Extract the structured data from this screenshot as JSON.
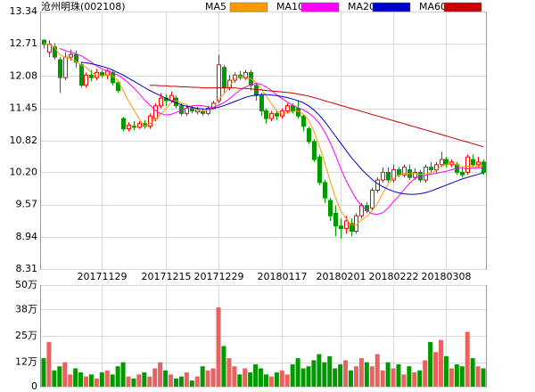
{
  "chart_data": [
    {
      "type": "candlestick",
      "title": "沧州明珠(002108)",
      "categories": [
        null,
        null,
        null,
        null,
        null,
        null,
        null,
        null,
        null,
        null,
        null,
        "20171129",
        null,
        null,
        null,
        null,
        null,
        null,
        null,
        null,
        null,
        null,
        null,
        "20171215",
        null,
        null,
        null,
        null,
        null,
        null,
        null,
        null,
        null,
        "20171229",
        null,
        null,
        null,
        null,
        null,
        null,
        null,
        null,
        null,
        null,
        null,
        "20180117",
        null,
        null,
        null,
        null,
        null,
        null,
        null,
        null,
        null,
        null,
        "20180201",
        null,
        null,
        null,
        null,
        null,
        null,
        null,
        null,
        null,
        "20180222",
        null,
        null,
        null,
        null,
        null,
        null,
        null,
        null,
        null,
        "20180308",
        null,
        null,
        null,
        null,
        null,
        null,
        null
      ],
      "open": [
        12.78,
        12.55,
        12.65,
        12.4,
        12.05,
        12.45,
        12.5,
        12.3,
        11.9,
        12.1,
        12.05,
        12.15,
        12.1,
        12.15,
        11.95,
        11.25,
        11.05,
        11.1,
        11.08,
        11.15,
        11.1,
        11.25,
        11.5,
        11.65,
        11.6,
        11.65,
        11.5,
        11.35,
        11.45,
        11.38,
        11.4,
        11.35,
        11.45,
        11.6,
        12.25,
        11.85,
        12.0,
        12.1,
        12.05,
        12.15,
        11.9,
        11.7,
        11.4,
        11.25,
        11.35,
        11.3,
        11.4,
        11.5,
        11.45,
        11.3,
        11.05,
        10.8,
        10.5,
        10.0,
        9.65,
        9.4,
        9.15,
        9.1,
        9.2,
        9.05,
        9.35,
        9.55,
        9.5,
        9.85,
        10.05,
        10.2,
        10.05,
        10.25,
        10.15,
        10.25,
        10.1,
        10.2,
        10.05,
        10.3,
        10.25,
        10.35,
        10.45,
        10.35,
        10.35,
        10.2,
        10.2,
        10.45,
        10.35,
        10.4
      ],
      "high": [
        12.8,
        12.78,
        12.72,
        12.45,
        12.55,
        12.6,
        12.58,
        12.35,
        12.15,
        12.2,
        12.22,
        12.2,
        12.22,
        12.18,
        12.0,
        11.28,
        11.18,
        11.2,
        11.2,
        11.22,
        11.35,
        11.55,
        11.75,
        11.72,
        11.78,
        11.7,
        11.55,
        11.52,
        11.5,
        11.48,
        11.45,
        11.5,
        11.6,
        12.5,
        12.3,
        12.1,
        12.15,
        12.18,
        12.2,
        12.2,
        11.95,
        11.75,
        11.45,
        11.4,
        11.42,
        11.45,
        11.55,
        11.55,
        11.6,
        11.32,
        11.1,
        10.85,
        10.55,
        10.05,
        9.7,
        9.55,
        9.3,
        9.35,
        9.3,
        9.4,
        9.6,
        9.62,
        9.9,
        10.1,
        10.3,
        10.3,
        10.35,
        10.3,
        10.35,
        10.35,
        10.28,
        10.25,
        10.35,
        10.4,
        10.4,
        10.6,
        10.5,
        10.45,
        10.4,
        10.3,
        10.55,
        10.55,
        10.5,
        10.45
      ],
      "low": [
        12.62,
        12.45,
        12.4,
        11.75,
        12.0,
        12.38,
        12.25,
        11.85,
        11.85,
        11.98,
        12.0,
        12.05,
        12.02,
        11.9,
        11.75,
        11.0,
        11.0,
        11.02,
        11.05,
        11.05,
        11.05,
        11.2,
        11.45,
        11.5,
        11.55,
        11.45,
        11.3,
        11.3,
        11.35,
        11.33,
        11.3,
        11.32,
        11.42,
        11.55,
        11.75,
        11.8,
        11.95,
        12.0,
        12.0,
        11.8,
        11.6,
        11.3,
        11.15,
        11.2,
        11.22,
        11.25,
        11.35,
        11.35,
        11.25,
        11.0,
        10.75,
        10.4,
        9.95,
        9.6,
        9.25,
        8.95,
        8.9,
        9.0,
        8.95,
        9.0,
        9.3,
        9.4,
        9.45,
        9.8,
        10.0,
        10.0,
        10.0,
        10.1,
        10.1,
        10.05,
        10.05,
        10.0,
        10.0,
        10.2,
        10.2,
        10.3,
        10.3,
        10.3,
        10.15,
        10.1,
        10.15,
        10.3,
        10.3,
        10.15
      ],
      "close": [
        12.7,
        12.7,
        12.45,
        12.05,
        12.45,
        12.5,
        12.35,
        11.9,
        12.1,
        12.05,
        12.15,
        12.1,
        12.18,
        11.95,
        11.8,
        11.05,
        11.12,
        11.08,
        11.15,
        11.1,
        11.3,
        11.5,
        11.65,
        11.6,
        11.7,
        11.5,
        11.35,
        11.45,
        11.4,
        11.42,
        11.35,
        11.45,
        11.55,
        12.3,
        11.85,
        12.0,
        12.1,
        12.05,
        12.15,
        11.9,
        11.7,
        11.4,
        11.25,
        11.35,
        11.3,
        11.4,
        11.5,
        11.4,
        11.3,
        11.1,
        10.8,
        10.45,
        10.0,
        9.7,
        9.35,
        9.15,
        9.1,
        9.25,
        9.05,
        9.35,
        9.55,
        9.45,
        9.85,
        10.05,
        10.2,
        10.05,
        10.25,
        10.15,
        10.3,
        10.1,
        10.2,
        10.05,
        10.3,
        10.25,
        10.35,
        10.45,
        10.35,
        10.4,
        10.2,
        10.15,
        10.5,
        10.35,
        10.4,
        10.2
      ],
      "series": [
        {
          "name": "MA5",
          "color": "#ff9900",
          "values": [
            12.72,
            12.7,
            12.65,
            12.5,
            12.45,
            12.42,
            12.38,
            12.3,
            12.25,
            12.15,
            12.1,
            12.08,
            12.1,
            12.08,
            12.0,
            11.8,
            11.6,
            11.42,
            11.25,
            11.1,
            11.15,
            11.22,
            11.33,
            11.43,
            11.55,
            11.6,
            11.56,
            11.52,
            11.47,
            11.42,
            11.4,
            11.41,
            11.43,
            11.62,
            11.73,
            11.85,
            12.03,
            12.08,
            12.03,
            12.04,
            11.96,
            11.84,
            11.69,
            11.54,
            11.4,
            11.34,
            11.36,
            11.39,
            11.4,
            11.34,
            11.22,
            11.01,
            10.73,
            10.41,
            10.06,
            9.73,
            9.46,
            9.31,
            9.18,
            9.17,
            9.27,
            9.33,
            9.45,
            9.59,
            9.79,
            9.96,
            10.08,
            10.14,
            10.19,
            10.17,
            10.18,
            10.16,
            10.17,
            10.18,
            10.23,
            10.32,
            10.36,
            10.38,
            10.35,
            10.31,
            10.32,
            10.32,
            10.32,
            10.33
          ]
        },
        {
          "name": "MA10",
          "color": "#ff00ff",
          "values": [
            null,
            null,
            null,
            12.62,
            12.58,
            12.55,
            12.52,
            12.48,
            12.42,
            12.35,
            12.28,
            12.22,
            12.18,
            12.14,
            12.1,
            12.03,
            11.95,
            11.85,
            11.74,
            11.62,
            11.52,
            11.42,
            11.35,
            11.32,
            11.33,
            11.37,
            11.41,
            11.46,
            11.5,
            11.51,
            11.5,
            11.48,
            11.47,
            11.51,
            11.56,
            11.63,
            11.72,
            11.8,
            11.86,
            11.91,
            11.94,
            11.92,
            11.87,
            11.8,
            11.71,
            11.64,
            11.57,
            11.51,
            11.46,
            11.42,
            11.36,
            11.28,
            11.16,
            11.0,
            10.8,
            10.56,
            10.3,
            10.06,
            9.86,
            9.68,
            9.55,
            9.45,
            9.39,
            9.38,
            9.41,
            9.5,
            9.62,
            9.73,
            9.86,
            9.98,
            10.07,
            10.12,
            10.14,
            10.16,
            10.18,
            10.2,
            10.22,
            10.25,
            10.28,
            10.28,
            10.27,
            10.28,
            10.29,
            10.29
          ]
        },
        {
          "name": "MA20",
          "color": "#0000cc",
          "values": [
            null,
            null,
            null,
            null,
            null,
            null,
            null,
            12.35,
            12.34,
            12.32,
            12.3,
            12.27,
            12.24,
            12.2,
            12.15,
            12.1,
            12.04,
            11.98,
            11.92,
            11.86,
            11.8,
            11.75,
            11.7,
            11.65,
            11.6,
            11.56,
            11.52,
            11.49,
            11.47,
            11.45,
            11.44,
            11.44,
            11.45,
            11.47,
            11.5,
            11.54,
            11.58,
            11.62,
            11.66,
            11.69,
            11.71,
            11.72,
            11.72,
            11.71,
            11.7,
            11.68,
            11.66,
            11.63,
            11.6,
            11.56,
            11.5,
            11.42,
            11.32,
            11.2,
            11.06,
            10.92,
            10.78,
            10.64,
            10.5,
            10.38,
            10.26,
            10.16,
            10.06,
            9.98,
            9.92,
            9.87,
            9.83,
            9.8,
            9.78,
            9.77,
            9.77,
            9.78,
            9.8,
            9.83,
            9.87,
            9.91,
            9.95,
            9.99,
            10.03,
            10.07,
            10.1,
            10.13,
            10.16,
            10.19
          ]
        },
        {
          "name": "MA60",
          "color": "#cc0000",
          "values": [
            null,
            null,
            null,
            null,
            null,
            null,
            null,
            null,
            null,
            null,
            null,
            null,
            null,
            null,
            null,
            null,
            null,
            null,
            null,
            null,
            11.9,
            11.9,
            11.89,
            11.89,
            11.88,
            11.88,
            11.87,
            11.87,
            11.86,
            11.86,
            11.85,
            11.85,
            11.85,
            11.85,
            11.85,
            11.85,
            11.85,
            11.84,
            11.84,
            11.83,
            11.82,
            11.81,
            11.8,
            11.79,
            11.78,
            11.77,
            11.76,
            11.75,
            11.73,
            11.71,
            11.69,
            11.66,
            11.63,
            11.6,
            11.57,
            11.54,
            11.51,
            11.48,
            11.45,
            11.42,
            11.39,
            11.36,
            11.33,
            11.3,
            11.27,
            11.24,
            11.21,
            11.18,
            11.15,
            11.12,
            11.09,
            11.06,
            11.03,
            11.0,
            10.97,
            10.94,
            10.91,
            10.88,
            10.85,
            10.82,
            10.79,
            10.76,
            10.73,
            10.7
          ]
        }
      ],
      "up_color": "#ff0000",
      "down_color": "#009900",
      "ylim": [
        8.31,
        13.34
      ],
      "yticks": [
        8.31,
        8.94,
        9.57,
        {
          "value": 10.2,
          "label": "10.20"
        },
        10.82,
        11.45,
        12.08,
        12.71,
        13.34
      ],
      "grid": true,
      "legend": "top"
    },
    {
      "type": "bar",
      "values": [
        14,
        22,
        8,
        10,
        12,
        6,
        9,
        7,
        5,
        6,
        4,
        7,
        8,
        6,
        10,
        12,
        5,
        4,
        6,
        7,
        5,
        9,
        12,
        8,
        6,
        4,
        5,
        7,
        3,
        5,
        10,
        8,
        9,
        39,
        20,
        14,
        10,
        6,
        9,
        7,
        11,
        9,
        6,
        5,
        7,
        8,
        6,
        11,
        14,
        9,
        10,
        13,
        16,
        12,
        15,
        9,
        11,
        13,
        8,
        10,
        14,
        12,
        10,
        16,
        8,
        12,
        9,
        11,
        6,
        10,
        7,
        8,
        13,
        22,
        17,
        23,
        15,
        9,
        11,
        10,
        27,
        14,
        10,
        9
      ],
      "up_color": "#e8625f",
      "down_color": "#009900",
      "ylim": [
        0,
        50
      ],
      "yticks": [
        0,
        {
          "value": 12,
          "label": "12万"
        },
        {
          "value": 25,
          "label": "25万"
        },
        {
          "value": 38,
          "label": "38万"
        },
        {
          "value": 50,
          "label": "50万"
        }
      ],
      "grid": true
    }
  ]
}
